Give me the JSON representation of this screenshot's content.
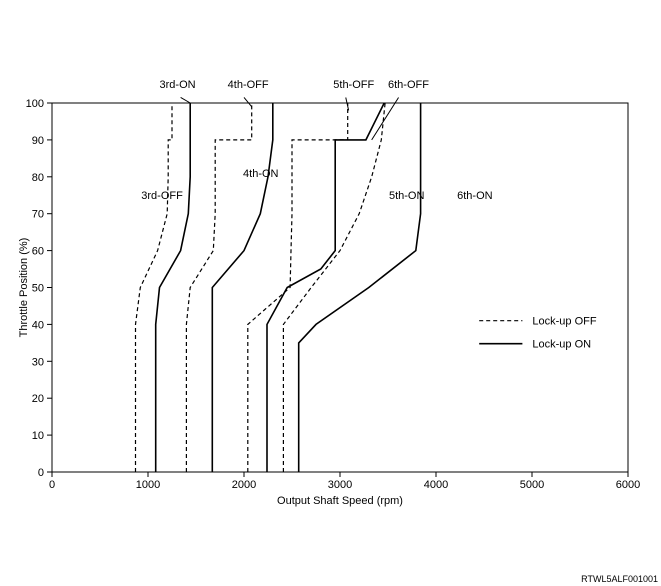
{
  "chart_data": {
    "type": "line",
    "xlabel": "Output Shaft Speed (rpm)",
    "ylabel": "Throttle Position (%)",
    "xlim": [
      0,
      6000
    ],
    "ylim": [
      0,
      100
    ],
    "xticks": [
      0,
      1000,
      2000,
      3000,
      4000,
      5000,
      6000
    ],
    "yticks": [
      0,
      10,
      20,
      30,
      40,
      50,
      60,
      70,
      80,
      90,
      100
    ],
    "grid": false,
    "legend_position": "right",
    "legend": [
      {
        "label": "Lock-up OFF",
        "style": "dashed"
      },
      {
        "label": "Lock-up ON",
        "style": "solid"
      }
    ],
    "series": [
      {
        "name": "3rd-OFF",
        "style": "dashed",
        "points": [
          [
            870,
            0
          ],
          [
            870,
            40
          ],
          [
            920,
            50
          ],
          [
            1100,
            60
          ],
          [
            1200,
            70
          ],
          [
            1210,
            80
          ],
          [
            1210,
            90
          ],
          [
            1250,
            90
          ],
          [
            1250,
            100
          ]
        ]
      },
      {
        "name": "3rd-ON",
        "style": "solid",
        "points": [
          [
            1080,
            0
          ],
          [
            1080,
            40
          ],
          [
            1120,
            50
          ],
          [
            1340,
            60
          ],
          [
            1420,
            70
          ],
          [
            1440,
            80
          ],
          [
            1440,
            90
          ],
          [
            1440,
            100
          ]
        ]
      },
      {
        "name": "4th-OFF",
        "style": "dashed",
        "points": [
          [
            1400,
            0
          ],
          [
            1400,
            40
          ],
          [
            1440,
            50
          ],
          [
            1680,
            60
          ],
          [
            1700,
            70
          ],
          [
            1700,
            80
          ],
          [
            1700,
            90
          ],
          [
            2080,
            90
          ],
          [
            2080,
            100
          ]
        ]
      },
      {
        "name": "4th-ON",
        "style": "solid",
        "points": [
          [
            1670,
            0
          ],
          [
            1670,
            50
          ],
          [
            2000,
            60
          ],
          [
            2170,
            70
          ],
          [
            2250,
            80
          ],
          [
            2300,
            90
          ],
          [
            2300,
            100
          ]
        ]
      },
      {
        "name": "5th-OFF",
        "style": "dashed",
        "points": [
          [
            2040,
            0
          ],
          [
            2040,
            40
          ],
          [
            2260,
            45
          ],
          [
            2480,
            50
          ],
          [
            2490,
            60
          ],
          [
            2500,
            70
          ],
          [
            2500,
            80
          ],
          [
            2500,
            90
          ],
          [
            3080,
            90
          ],
          [
            3080,
            100
          ]
        ]
      },
      {
        "name": "5th-ON",
        "style": "solid",
        "points": [
          [
            2240,
            0
          ],
          [
            2240,
            40
          ],
          [
            2450,
            50
          ],
          [
            2800,
            55
          ],
          [
            2950,
            60
          ],
          [
            2950,
            70
          ],
          [
            2950,
            80
          ],
          [
            2950,
            90
          ],
          [
            3270,
            90
          ],
          [
            3460,
            100
          ]
        ]
      },
      {
        "name": "6th-OFF",
        "style": "dashed",
        "points": [
          [
            2410,
            0
          ],
          [
            2410,
            40
          ],
          [
            2700,
            50
          ],
          [
            3000,
            60
          ],
          [
            3200,
            70
          ],
          [
            3330,
            80
          ],
          [
            3430,
            90
          ],
          [
            3470,
            100
          ]
        ]
      },
      {
        "name": "6th-ON",
        "style": "solid",
        "points": [
          [
            2570,
            0
          ],
          [
            2570,
            35
          ],
          [
            2750,
            40
          ],
          [
            3300,
            50
          ],
          [
            3790,
            60
          ],
          [
            3840,
            70
          ],
          [
            3840,
            90
          ],
          [
            3840,
            100
          ]
        ]
      }
    ],
    "annotations": [
      {
        "text": "3rd-ON",
        "x": 1120,
        "y": 104
      },
      {
        "text": "4th-OFF",
        "x": 1830,
        "y": 104
      },
      {
        "text": "5th-OFF",
        "x": 2930,
        "y": 104
      },
      {
        "text": "6th-OFF",
        "x": 3500,
        "y": 104
      },
      {
        "text": "3rd-OFF",
        "x": 930,
        "y": 74
      },
      {
        "text": "4th-ON",
        "x": 1990,
        "y": 80
      },
      {
        "text": "5th-ON",
        "x": 3510,
        "y": 74
      },
      {
        "text": "6th-ON",
        "x": 4220,
        "y": 74
      }
    ],
    "footer": "RTWL5ALF001001"
  }
}
